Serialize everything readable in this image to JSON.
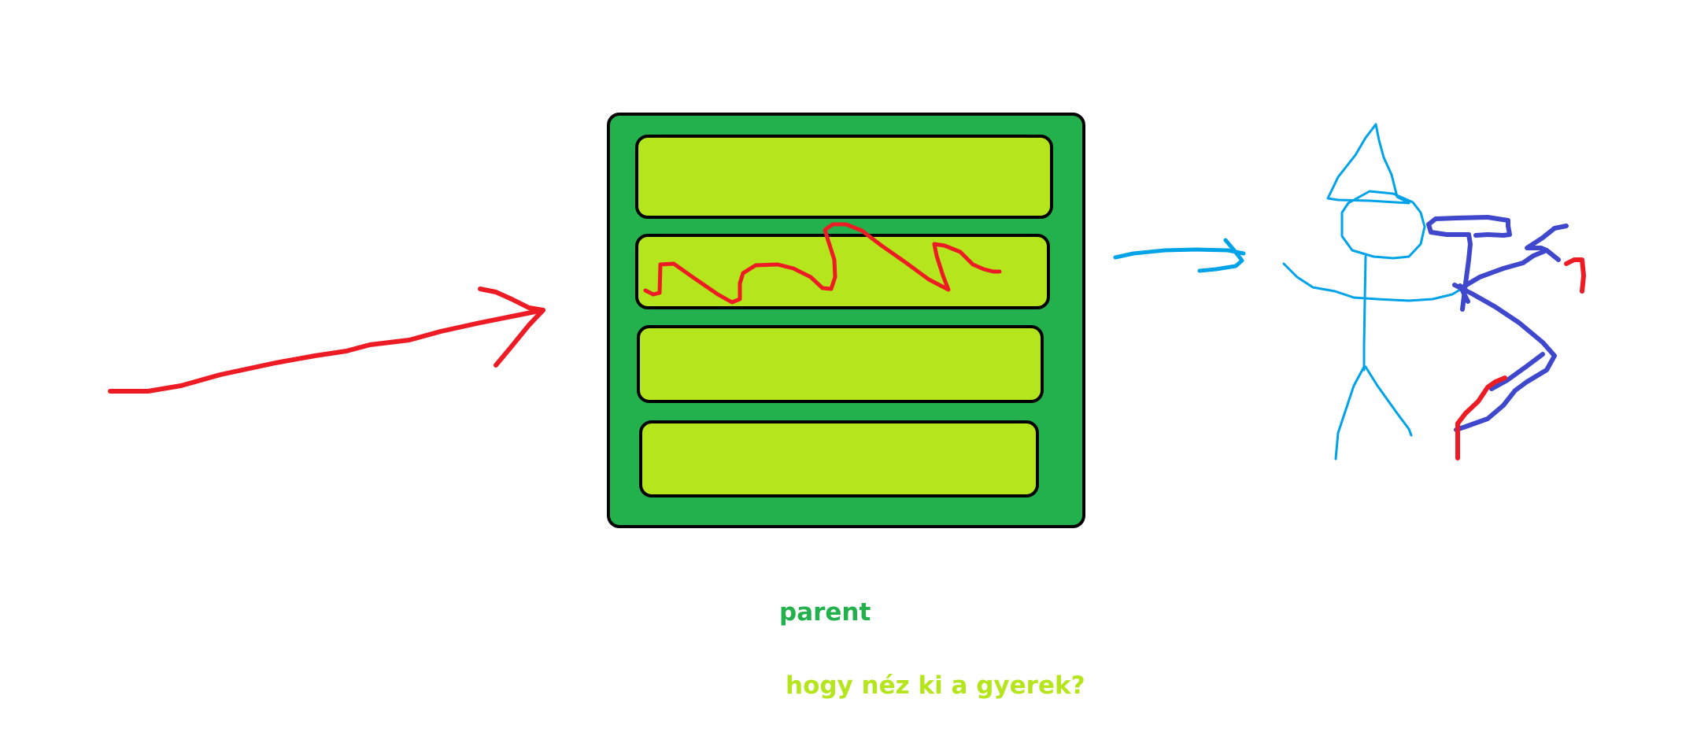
{
  "labels": {
    "parent": "parent",
    "question": "hogy néz ki a gyerek?"
  },
  "colors": {
    "parent_box": "#22b14c",
    "child_row": "#b5e61d",
    "outline": "#000000",
    "red_stroke": "#ed1c24",
    "light_blue_stroke": "#00a2e8",
    "dark_blue_stroke": "#3f48cc",
    "background": "#ffffff"
  },
  "diagram": {
    "parent_container": {
      "rows": 4,
      "scribbled_row": 2
    },
    "figure": "stick-figure-archer"
  }
}
